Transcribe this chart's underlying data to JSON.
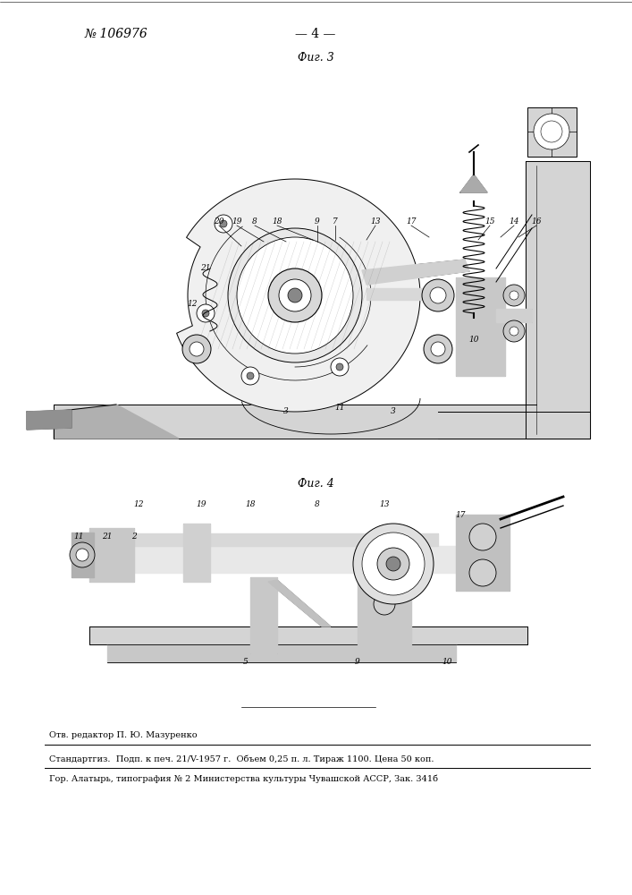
{
  "background_color": "#ffffff",
  "page_number_text": "№ 106976",
  "center_dash_text": "— 4 —",
  "fig3_label": "Фиг. 3",
  "fig4_label": "Фиг. 4",
  "footer_line1": "Отв. редактор П. Ю. Мазуренко",
  "footer_line2": "Стандартгиз.  Подп. к печ. 21/V-1957 г.  Объем 0,25 п. л. Тираж 1100. Цена 50 коп.",
  "footer_line3": "Гор. Алатырь, типография № 2 Министерства культуры Чувашской АССР, Зак. 341б",
  "font_size_header": 10,
  "font_size_footer": 7,
  "font_size_fig_label": 9,
  "font_size_num": 6.5
}
